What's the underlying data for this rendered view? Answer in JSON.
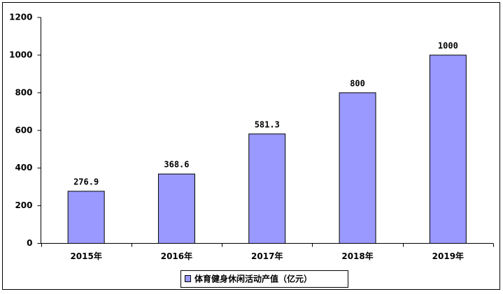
{
  "chart_data": {
    "type": "bar",
    "categories": [
      "2015年",
      "2016年",
      "2017年",
      "2018年",
      "2019年"
    ],
    "series": [
      {
        "name": "体育健身休闲活动产值（亿元）",
        "color": "#9999ff",
        "values": [
          276.9,
          368.6,
          581.3,
          800,
          1000
        ]
      }
    ],
    "ylim": [
      0,
      1200
    ],
    "yticks": [
      0,
      200,
      400,
      600,
      800,
      1000,
      1200
    ],
    "legend": "bottom"
  }
}
